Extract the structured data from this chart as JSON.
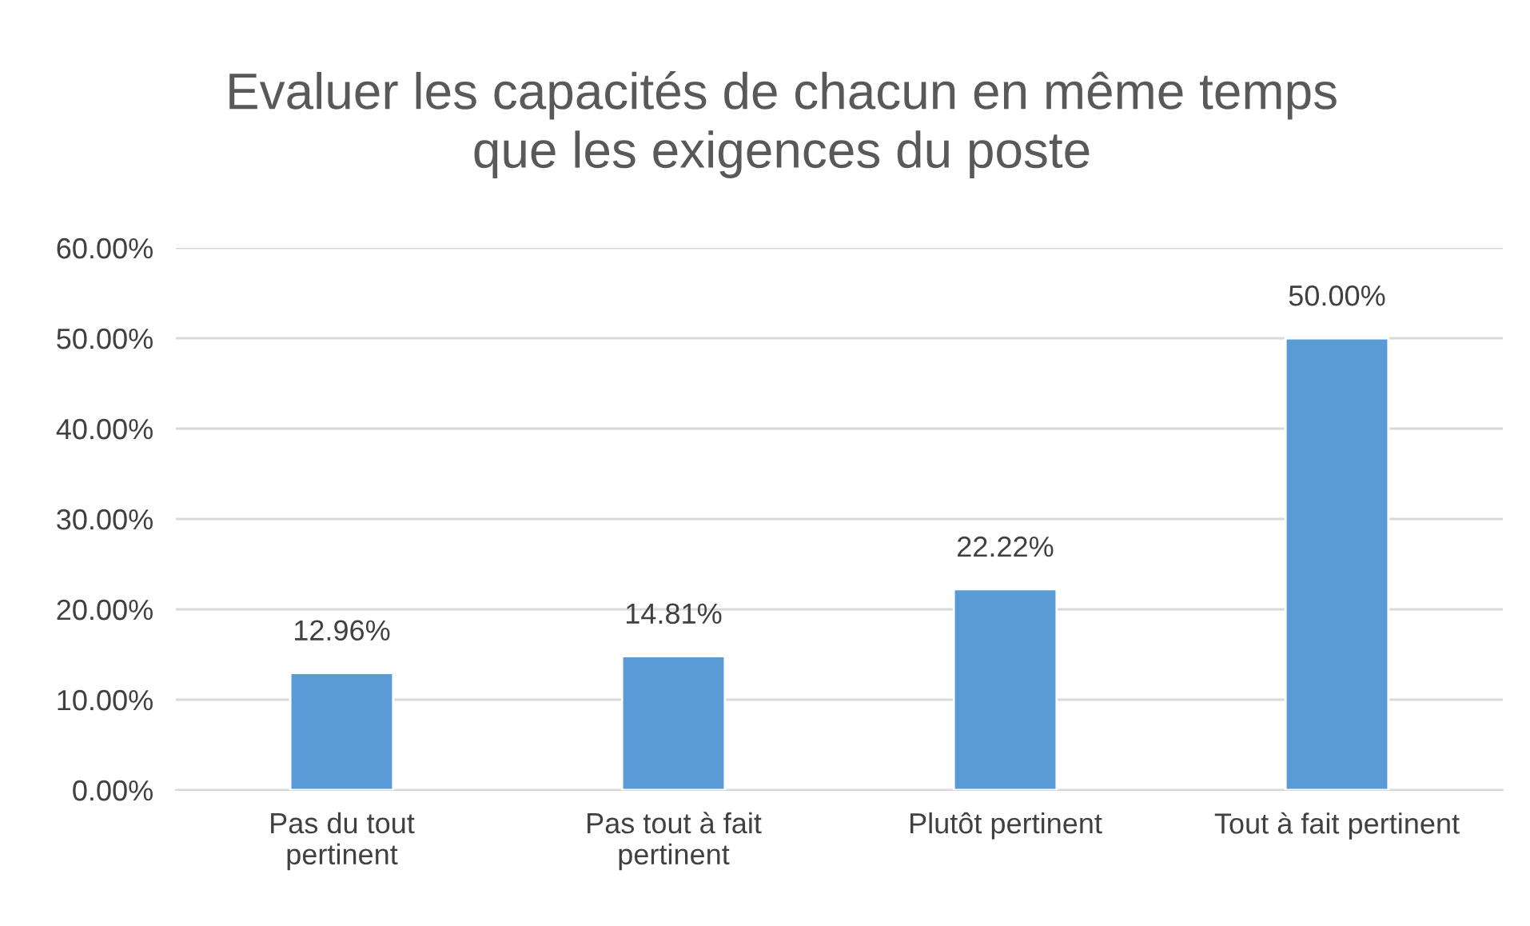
{
  "chart_data": {
    "type": "bar",
    "title": "Evaluer les capacités de chacun en même temps\nque les exigences du poste",
    "categories": [
      "Pas du tout\npertinent",
      "Pas tout à fait\npertinent",
      "Plutôt pertinent",
      "Tout à fait pertinent"
    ],
    "values": [
      12.96,
      14.81,
      22.22,
      50.0
    ],
    "value_labels": [
      "12.96%",
      "14.81%",
      "22.22%",
      "50.00%"
    ],
    "color": "#5b9bd5",
    "ylim": [
      0,
      60
    ],
    "yticks": [
      {
        "value": 0,
        "label": "0.00%"
      },
      {
        "value": 10,
        "label": "10.00%"
      },
      {
        "value": 20,
        "label": "20.00%"
      },
      {
        "value": 30,
        "label": "30.00%"
      },
      {
        "value": 40,
        "label": "40.00%"
      },
      {
        "value": 50,
        "label": "50.00%"
      },
      {
        "value": 60,
        "label": "60.00%"
      }
    ],
    "grid": "y",
    "legend": false
  }
}
